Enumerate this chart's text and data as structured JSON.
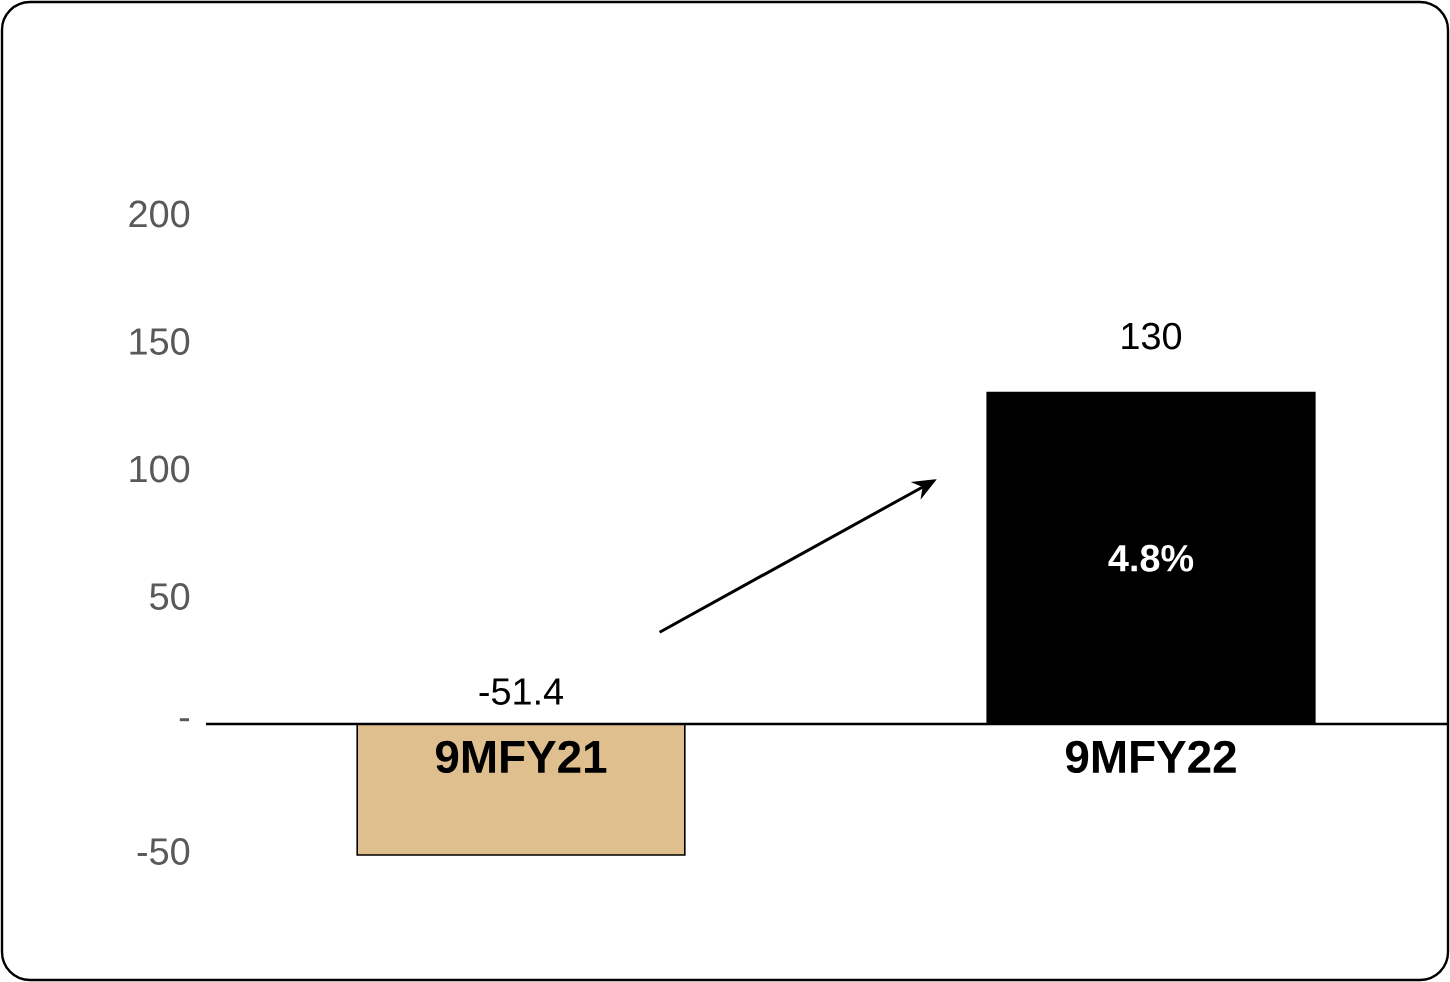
{
  "chart_data": {
    "type": "bar",
    "categories": [
      "9MFY21",
      "9MFY22"
    ],
    "values": [
      -51.4,
      130
    ],
    "colors": [
      "#dfbf8e",
      "#000000"
    ],
    "yticks": [
      -50,
      {
        "value": 0,
        "label": "-"
      },
      50,
      100,
      150,
      200
    ],
    "ylim": [
      -51.4,
      200
    ],
    "value_labels": [
      "-51.4",
      "130"
    ],
    "annotations": [
      "4.8%"
    ]
  }
}
